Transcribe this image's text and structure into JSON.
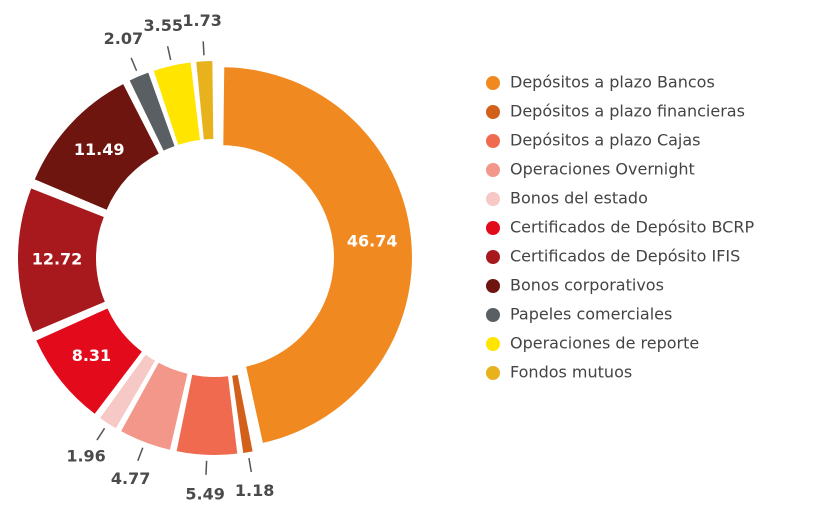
{
  "chart_data": {
    "type": "donut",
    "categories": [
      "Depósitos a plazo Bancos",
      "Depósitos a plazo financieras",
      "Depósitos a plazo Cajas",
      "Operaciones Overnight",
      "Bonos del estado",
      "Certificados de Depósito BCRP",
      "Certificados de Depósito IFIS",
      "Bonos corporativos",
      "Papeles comerciales",
      "Operaciones de reporte",
      "Fondos mutuos"
    ],
    "values": [
      46.74,
      1.18,
      5.49,
      4.77,
      1.96,
      8.31,
      12.72,
      11.49,
      2.07,
      3.55,
      1.73
    ],
    "colors": [
      "#f0891f",
      "#d2601a",
      "#ef6a4f",
      "#f2978a",
      "#f6c8c6",
      "#e30a1c",
      "#a8191d",
      "#6e1510",
      "#5a5f63",
      "#ffe500",
      "#e7b21c"
    ],
    "legend": "right"
  }
}
